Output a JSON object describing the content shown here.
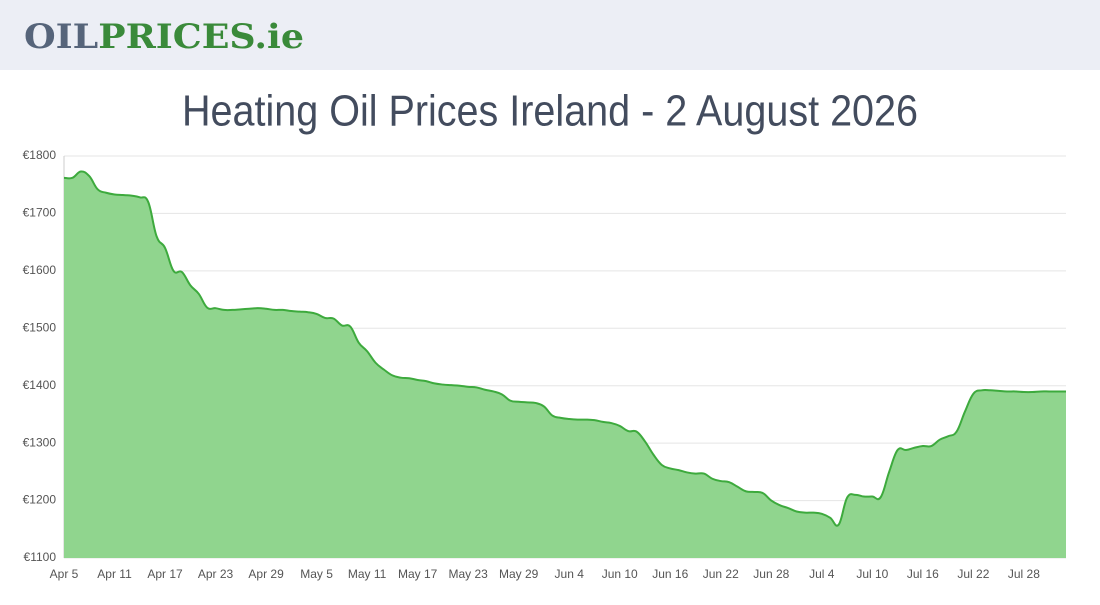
{
  "header": {
    "logo": [
      "OIL",
      "PRICES",
      ".ie"
    ]
  },
  "chart_data": {
    "type": "area",
    "title": "Heating Oil Prices Ireland - 2 August 2026",
    "categories": [
      "Apr 5",
      null,
      null,
      null,
      null,
      null,
      "Apr 11",
      null,
      null,
      null,
      null,
      null,
      "Apr 17",
      null,
      null,
      null,
      null,
      null,
      "Apr 23",
      null,
      null,
      null,
      null,
      null,
      "Apr 29",
      null,
      null,
      null,
      null,
      null,
      "May 5",
      null,
      null,
      null,
      null,
      null,
      "May 11",
      null,
      null,
      null,
      null,
      null,
      "May 17",
      null,
      null,
      null,
      null,
      null,
      "May 23",
      null,
      null,
      null,
      null,
      null,
      "May 29",
      null,
      null,
      null,
      null,
      null,
      "Jun 4",
      null,
      null,
      null,
      null,
      null,
      "Jun 10",
      null,
      null,
      null,
      null,
      null,
      "Jun 16",
      null,
      null,
      null,
      null,
      null,
      "Jun 22",
      null,
      null,
      null,
      null,
      null,
      "Jun 28",
      null,
      null,
      null,
      null,
      null,
      "Jul 4",
      null,
      null,
      null,
      null,
      null,
      "Jul 10",
      null,
      null,
      null,
      null,
      null,
      "Jul 16",
      null,
      null,
      null,
      null,
      null,
      "Jul 22",
      null,
      null,
      null,
      null,
      null,
      "Jul 28",
      null,
      null,
      null,
      null,
      null
    ],
    "values": [
      1762,
      1762,
      1773,
      1765,
      1742,
      1736,
      1733,
      1732,
      1731,
      1728,
      1720,
      1660,
      1640,
      1600,
      1598,
      1575,
      1560,
      1536,
      1535,
      1532,
      1532,
      1533,
      1534,
      1535,
      1534,
      1532,
      1532,
      1530,
      1529,
      1528,
      1525,
      1518,
      1517,
      1505,
      1503,
      1475,
      1460,
      1440,
      1428,
      1418,
      1414,
      1413,
      1410,
      1408,
      1404,
      1402,
      1401,
      1400,
      1398,
      1397,
      1393,
      1390,
      1385,
      1374,
      1372,
      1371,
      1370,
      1364,
      1348,
      1344,
      1342,
      1341,
      1341,
      1340,
      1337,
      1335,
      1330,
      1321,
      1320,
      1303,
      1280,
      1262,
      1256,
      1253,
      1249,
      1247,
      1247,
      1238,
      1234,
      1232,
      1224,
      1216,
      1215,
      1213,
      1200,
      1192,
      1187,
      1181,
      1179,
      1179,
      1177,
      1170,
      1158,
      1205,
      1210,
      1207,
      1207,
      1206,
      1250,
      1288,
      1288,
      1292,
      1295,
      1295,
      1306,
      1312,
      1320,
      1355,
      1386,
      1392,
      1392,
      1391,
      1390,
      1390,
      1389,
      1389,
      1390,
      1390,
      1390,
      1390
    ],
    "color": "#3daa3d",
    "fill": "#90d58e",
    "ylim": [
      1100,
      1800
    ],
    "yticks": [
      {
        "value": 1100,
        "label": "€1100"
      },
      {
        "value": 1200,
        "label": "€1200"
      },
      {
        "value": 1300,
        "label": "€1300"
      },
      {
        "value": 1400,
        "label": "€1400"
      },
      {
        "value": 1500,
        "label": "€1500"
      },
      {
        "value": 1600,
        "label": "€1600"
      },
      {
        "value": 1700,
        "label": "€1700"
      },
      {
        "value": 1800,
        "label": "€1800"
      }
    ],
    "grid": true
  }
}
